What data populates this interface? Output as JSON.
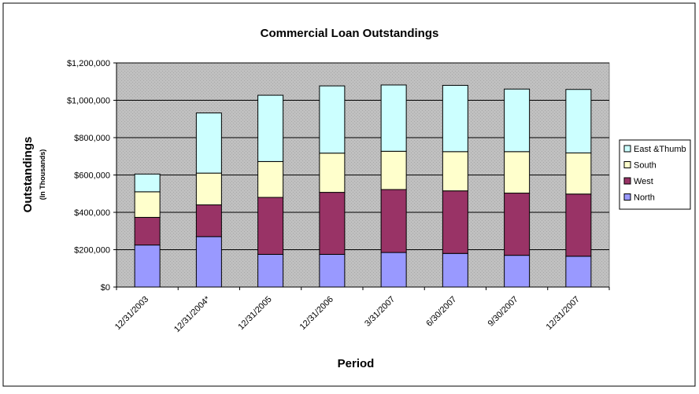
{
  "chart_data": {
    "type": "bar",
    "stacked": true,
    "title": "Commercial Loan Outstandings",
    "xlabel": "Period",
    "ylabel": "Outstandings",
    "ylabel_sub": "(In Thousands)",
    "ylim": [
      0,
      1200000
    ],
    "yticks": [
      0,
      200000,
      400000,
      600000,
      800000,
      1000000,
      1200000
    ],
    "ytick_labels": [
      "$0",
      "$200,000",
      "$400,000",
      "$600,000",
      "$800,000",
      "$1,000,000",
      "$1,200,000"
    ],
    "categories": [
      "12/31/2003",
      "12/31/2004*",
      "12/31/2005",
      "12/31/2006",
      "3/31/2007",
      "6/30/2007",
      "9/30/2007",
      "12/31/2007"
    ],
    "grid": true,
    "legend_position": "right",
    "series": [
      {
        "name": "North",
        "color": "#9999ff",
        "values": [
          225000,
          270000,
          175000,
          175000,
          185000,
          180000,
          170000,
          165000
        ]
      },
      {
        "name": "West",
        "color": "#993366",
        "values": [
          148000,
          170000,
          305000,
          332000,
          337000,
          335000,
          333000,
          333000
        ]
      },
      {
        "name": "South",
        "color": "#ffffcc",
        "values": [
          137000,
          170000,
          192000,
          210000,
          205000,
          210000,
          222000,
          220000
        ]
      },
      {
        "name": "East &Thumb",
        "color": "#ccffff",
        "values": [
          95000,
          322000,
          355000,
          360000,
          355000,
          355000,
          335000,
          340000
        ]
      }
    ],
    "legend_order": [
      "East &Thumb",
      "South",
      "West",
      "North"
    ]
  }
}
